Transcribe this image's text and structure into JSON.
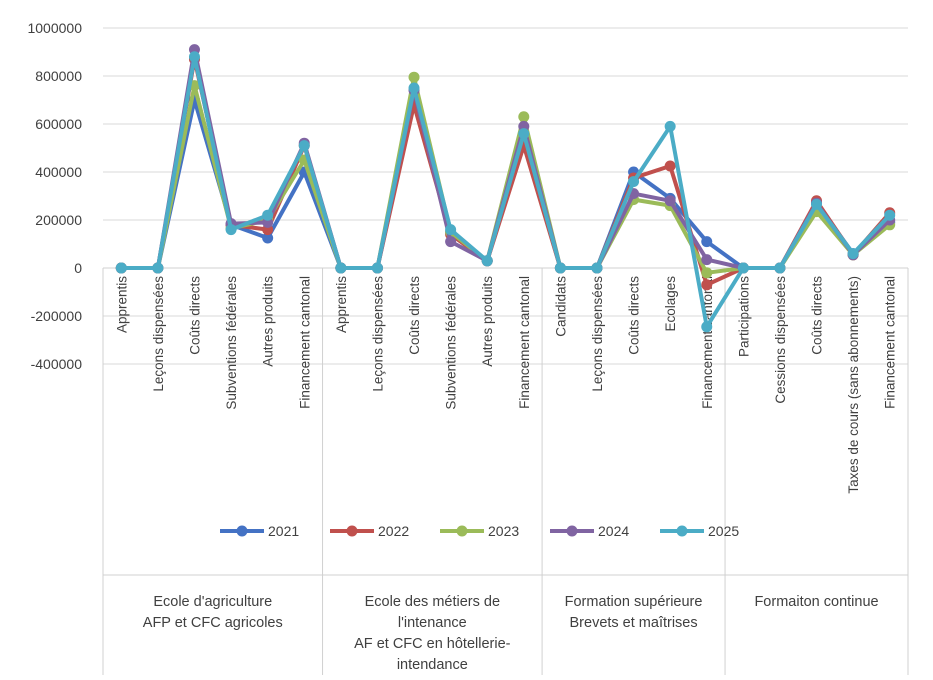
{
  "chart_data": {
    "type": "line",
    "title": "",
    "xlabel": "",
    "ylabel": "",
    "ylim": [
      -400000,
      1000000
    ],
    "yticks": [
      "1000000",
      "800000",
      "600000",
      "400000",
      "200000",
      "0",
      "-200000",
      "-400000"
    ],
    "grid": true,
    "legend_position": "bottom-center",
    "categories": [
      "Apprentis",
      "Leçons dispensées",
      "Coûts directs",
      "Subventions fédérales",
      "Autres produits",
      "Financement cantonal",
      "Apprentis",
      "Leçons dispensées",
      "Coûts directs",
      "Subventions fédérales",
      "Autres produits",
      "Financement cantonal",
      "Candidats",
      "Leçons dispensées",
      "Coûts directs",
      "Ecolages",
      "Financement cantonal",
      "Participations",
      "Cessions dispensées",
      "Coûts directs",
      "Taxes de cours (sans abonnements)",
      "Financement cantonal"
    ],
    "groups": [
      {
        "lines": [
          "Ecole d'agriculture",
          "AFP et CFC agricoles"
        ],
        "start": 0,
        "count": 6
      },
      {
        "lines": [
          "Ecole des métiers de",
          "l'intenance",
          "AF et CFC en hôtellerie-",
          "intendance"
        ],
        "start": 6,
        "count": 6
      },
      {
        "lines": [
          "Formation supérieure",
          "Brevets et maîtrises"
        ],
        "start": 12,
        "count": 5
      },
      {
        "lines": [
          "Formaiton continue"
        ],
        "start": 17,
        "count": 5
      }
    ],
    "series": [
      {
        "name": "2021",
        "color": "#4472C4",
        "values": [
          0,
          0,
          700000,
          180000,
          125000,
          400000,
          0,
          0,
          700000,
          150000,
          30000,
          530000,
          0,
          0,
          400000,
          290000,
          110000,
          0,
          0,
          270000,
          60000,
          190000
        ]
      },
      {
        "name": "2022",
        "color": "#C0504D",
        "values": [
          0,
          0,
          870000,
          180000,
          160000,
          510000,
          0,
          0,
          680000,
          140000,
          30000,
          510000,
          0,
          0,
          375000,
          425000,
          -70000,
          0,
          0,
          280000,
          55000,
          230000
        ]
      },
      {
        "name": "2023",
        "color": "#9BBB59",
        "values": [
          0,
          0,
          760000,
          165000,
          200000,
          450000,
          0,
          0,
          795000,
          150000,
          30000,
          630000,
          0,
          0,
          285000,
          260000,
          -20000,
          0,
          0,
          235000,
          55000,
          180000
        ]
      },
      {
        "name": "2024",
        "color": "#8064A2",
        "values": [
          0,
          0,
          910000,
          185000,
          190000,
          520000,
          0,
          0,
          740000,
          110000,
          30000,
          590000,
          0,
          0,
          310000,
          280000,
          35000,
          0,
          0,
          270000,
          55000,
          200000
        ]
      },
      {
        "name": "2025",
        "color": "#4BACC6",
        "values": [
          0,
          0,
          880000,
          160000,
          220000,
          510000,
          0,
          0,
          750000,
          160000,
          30000,
          560000,
          0,
          0,
          360000,
          590000,
          -245000,
          0,
          0,
          265000,
          60000,
          220000
        ]
      }
    ]
  }
}
